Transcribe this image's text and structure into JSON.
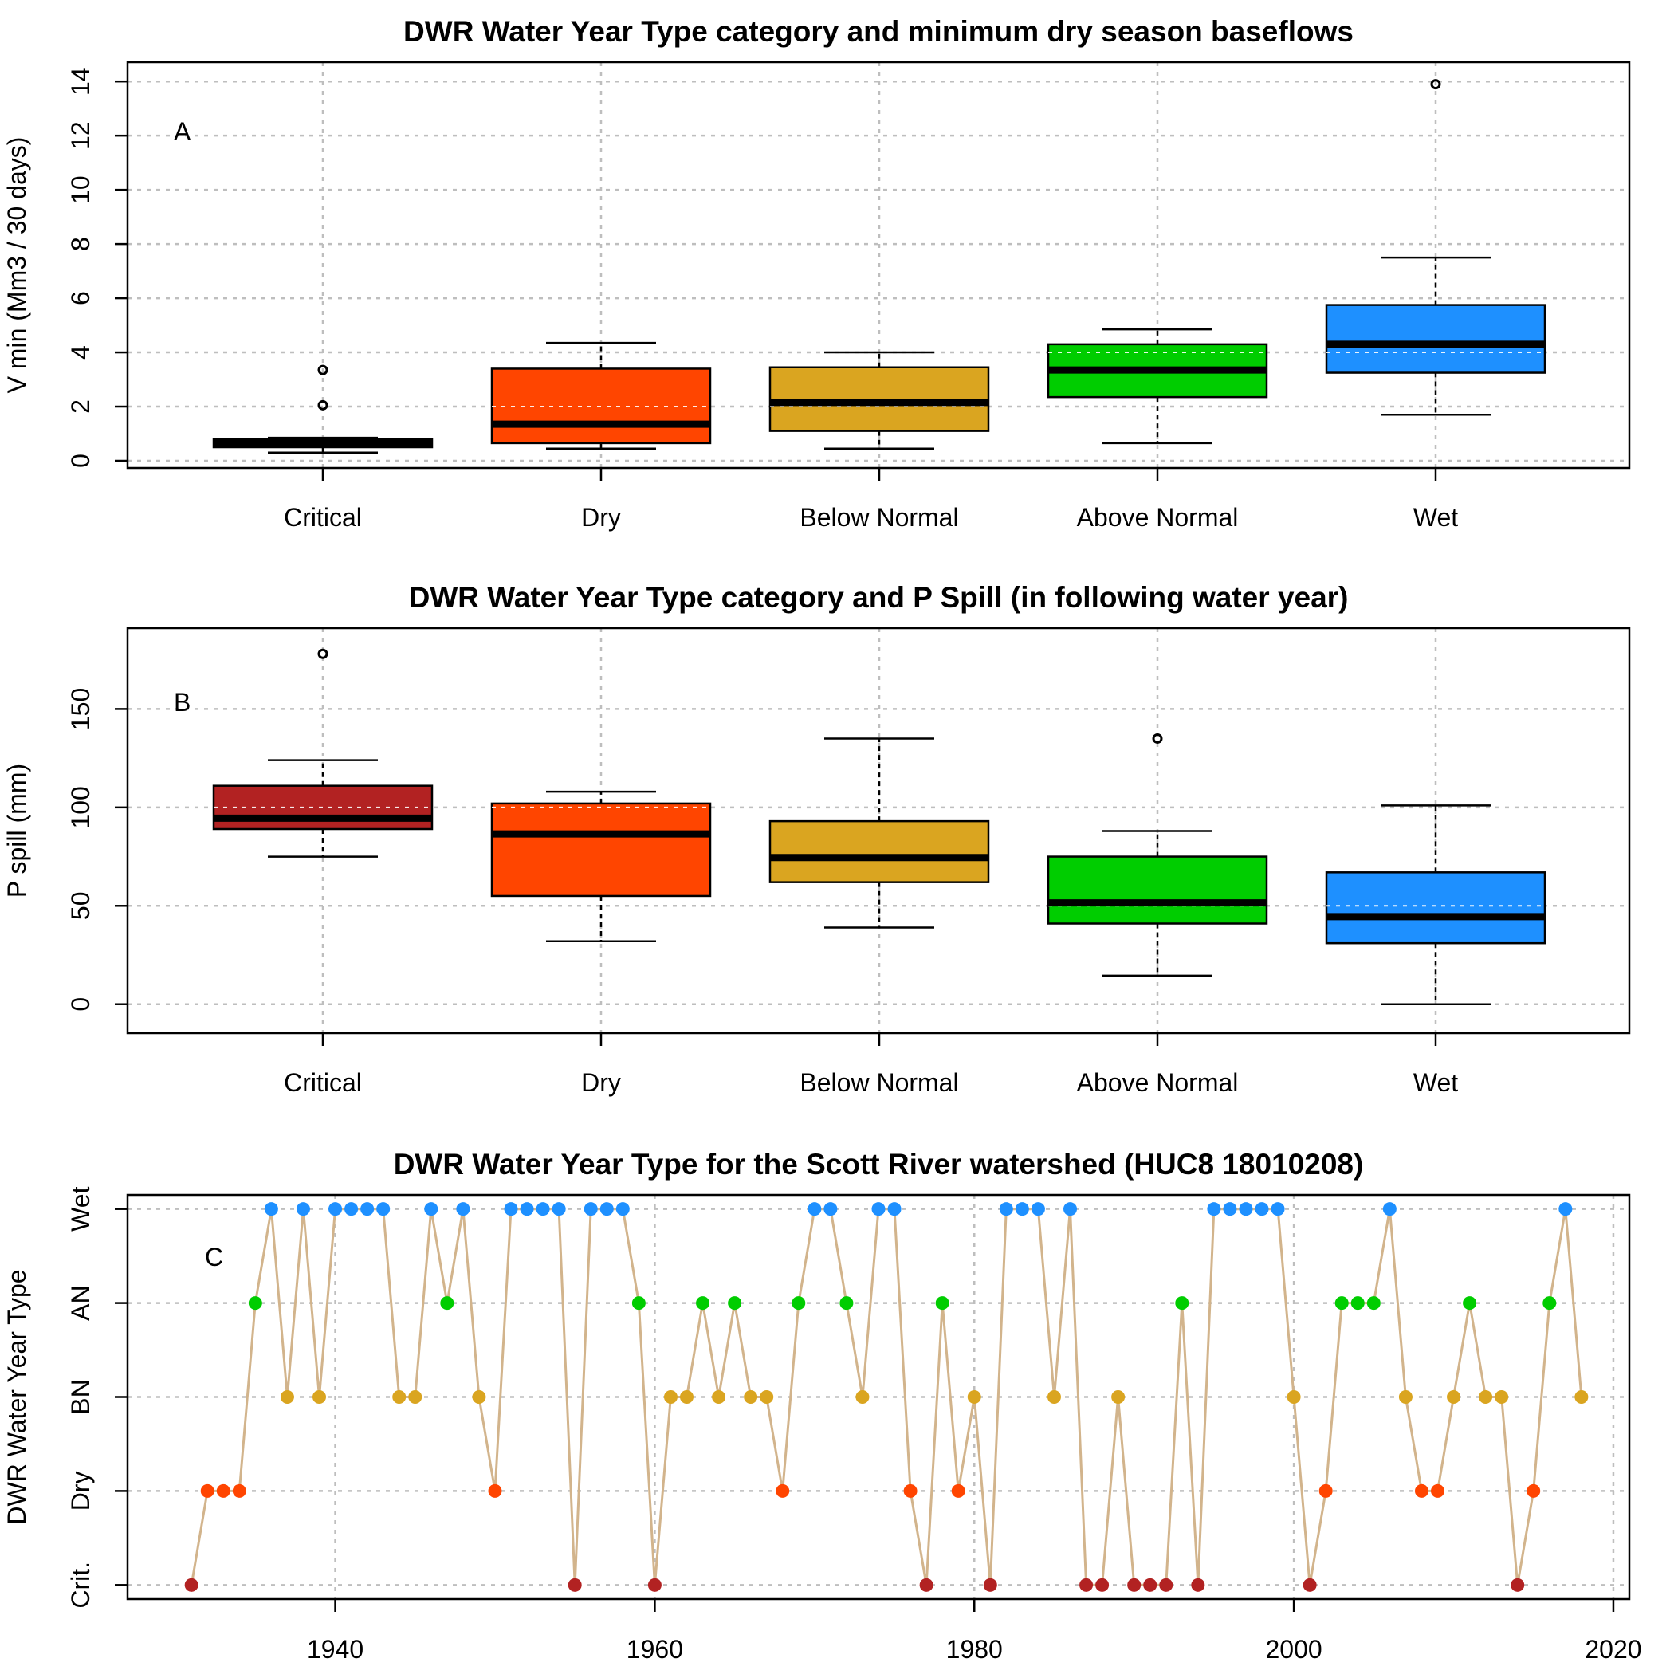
{
  "colors": {
    "critical": "#B22222",
    "dry": "#FF4500",
    "below_normal": "#DAA520",
    "above_normal": "#00CD00",
    "wet": "#1E90FF",
    "line": "#D2B48C",
    "grid": "#BEBEBE"
  },
  "chart_data": [
    {
      "type": "box",
      "panel_label": "A",
      "title": "DWR Water Year Type category and minimum dry season baseflows",
      "xlabel": "",
      "ylabel": "V min (Mm3 / 30 days)",
      "ylim": [
        0,
        14.3
      ],
      "yticks": [
        0,
        2,
        4,
        6,
        8,
        10,
        12,
        14
      ],
      "grid": true,
      "categories": [
        "Critical",
        "Dry",
        "Below Normal",
        "Above Normal",
        "Wet"
      ],
      "fills": [
        "#000000",
        "#FF4500",
        "#DAA520",
        "#00CD00",
        "#1E90FF"
      ],
      "boxes": [
        {
          "whisker_low": 0.3,
          "q1": 0.5,
          "median": 0.65,
          "q3": 0.8,
          "whisker_high": 0.85,
          "outliers": [
            2.05,
            3.35
          ]
        },
        {
          "whisker_low": 0.45,
          "q1": 0.65,
          "median": 1.35,
          "q3": 3.4,
          "whisker_high": 4.35,
          "outliers": []
        },
        {
          "whisker_low": 0.45,
          "q1": 1.1,
          "median": 2.15,
          "q3": 3.45,
          "whisker_high": 4.0,
          "outliers": []
        },
        {
          "whisker_low": 0.65,
          "q1": 2.35,
          "median": 3.35,
          "q3": 4.3,
          "whisker_high": 4.85,
          "outliers": []
        },
        {
          "whisker_low": 1.7,
          "q1": 3.25,
          "median": 4.3,
          "q3": 5.75,
          "whisker_high": 7.5,
          "outliers": [
            13.9
          ]
        }
      ]
    },
    {
      "type": "box",
      "panel_label": "B",
      "title": "DWR Water Year Type category and P Spill (in following water year)",
      "xlabel": "",
      "ylabel": "P spill (mm)",
      "ylim": [
        -7,
        185
      ],
      "yticks": [
        0,
        50,
        100,
        150
      ],
      "grid": true,
      "categories": [
        "Critical",
        "Dry",
        "Below Normal",
        "Above Normal",
        "Wet"
      ],
      "fills": [
        "#B22222",
        "#FF4500",
        "#DAA520",
        "#00CD00",
        "#1E90FF"
      ],
      "boxes": [
        {
          "whisker_low": 75,
          "q1": 89,
          "median": 94.5,
          "q3": 111,
          "whisker_high": 124,
          "outliers": [
            178
          ]
        },
        {
          "whisker_low": 32,
          "q1": 55,
          "median": 86.5,
          "q3": 102,
          "whisker_high": 108,
          "outliers": []
        },
        {
          "whisker_low": 39,
          "q1": 62,
          "median": 74.5,
          "q3": 93,
          "whisker_high": 135,
          "outliers": []
        },
        {
          "whisker_low": 14.5,
          "q1": 41,
          "median": 51.5,
          "q3": 75,
          "whisker_high": 88,
          "outliers": [
            135
          ]
        },
        {
          "whisker_low": 0,
          "q1": 31,
          "median": 44.5,
          "q3": 67,
          "whisker_high": 101,
          "outliers": []
        }
      ]
    },
    {
      "type": "line",
      "panel_label": "C",
      "title": "DWR Water Year Type for the Scott River watershed (HUC8 18010208)",
      "xlabel": "",
      "ylabel": "DWR Water Year Type",
      "xlim": [
        1927,
        2021
      ],
      "xticks": [
        1940,
        1960,
        1980,
        2000,
        2020
      ],
      "ylim": [
        0.85,
        5.15
      ],
      "category_levels": [
        "Crit.",
        "Dry",
        "BN",
        "AN",
        "Wet"
      ],
      "grid": true,
      "x": [
        1931,
        1932,
        1933,
        1934,
        1935,
        1936,
        1937,
        1938,
        1939,
        1940,
        1941,
        1942,
        1943,
        1944,
        1945,
        1946,
        1947,
        1948,
        1949,
        1950,
        1951,
        1952,
        1953,
        1954,
        1955,
        1956,
        1957,
        1958,
        1959,
        1960,
        1961,
        1962,
        1963,
        1964,
        1965,
        1966,
        1967,
        1968,
        1969,
        1970,
        1971,
        1972,
        1973,
        1974,
        1975,
        1976,
        1977,
        1978,
        1979,
        1980,
        1981,
        1982,
        1983,
        1984,
        1985,
        1986,
        1987,
        1988,
        1989,
        1990,
        1991,
        1992,
        1993,
        1994,
        1995,
        1996,
        1997,
        1998,
        1999,
        2000,
        2001,
        2002,
        2003,
        2004,
        2005,
        2006,
        2007,
        2008,
        2009,
        2010,
        2011,
        2012,
        2013,
        2014,
        2015,
        2016,
        2017,
        2018
      ],
      "y": [
        1,
        2,
        2,
        2,
        4,
        5,
        3,
        5,
        3,
        5,
        5,
        5,
        5,
        3,
        3,
        5,
        4,
        5,
        3,
        2,
        5,
        5,
        5,
        5,
        1,
        5,
        5,
        5,
        4,
        1,
        3,
        3,
        4,
        3,
        4,
        3,
        3,
        2,
        4,
        5,
        5,
        4,
        3,
        5,
        5,
        2,
        1,
        4,
        2,
        3,
        1,
        5,
        5,
        5,
        3,
        5,
        1,
        1,
        3,
        1,
        1,
        1,
        4,
        1,
        5,
        5,
        5,
        5,
        5,
        3,
        1,
        2,
        4,
        4,
        4,
        5,
        3,
        2,
        2,
        3,
        4,
        3,
        3,
        1,
        2,
        4,
        5,
        3
      ]
    }
  ]
}
